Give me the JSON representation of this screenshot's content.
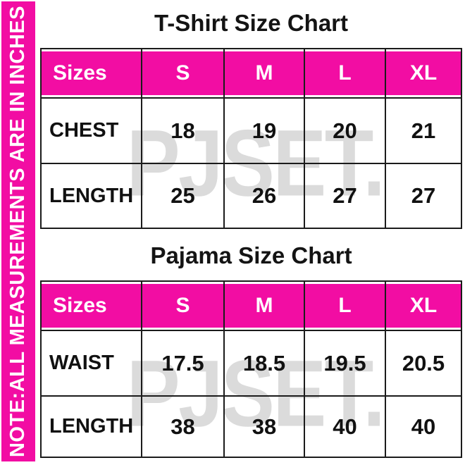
{
  "note_banner": {
    "text": "NOTE:ALL MEASUREMENTS ARE IN INCHES"
  },
  "watermark": {
    "text": "PJSET."
  },
  "colors": {
    "accent_pink": "#F20DA3",
    "watermark_gray": "#DBDBDB",
    "grid_line_black": "#1B1B1B",
    "text_black": "#111111",
    "text_white": "#FFFFFF"
  },
  "tshirt_chart": {
    "title": "T-Shirt Size Chart",
    "header": {
      "label": "Sizes",
      "sizes": [
        "S",
        "M",
        "L",
        "XL"
      ]
    },
    "rows": [
      {
        "label": "CHEST",
        "values": [
          "18",
          "19",
          "20",
          "21"
        ]
      },
      {
        "label": "LENGTH",
        "values": [
          "25",
          "26",
          "27",
          "27"
        ]
      }
    ]
  },
  "pajama_chart": {
    "title": "Pajama Size Chart",
    "header": {
      "label": "Sizes",
      "sizes": [
        "S",
        "M",
        "L",
        "XL"
      ]
    },
    "rows": [
      {
        "label": "WAIST",
        "values": [
          "17.5",
          "18.5",
          "19.5",
          "20.5"
        ]
      },
      {
        "label": "LENGTH",
        "values": [
          "38",
          "38",
          "40",
          "40"
        ]
      }
    ]
  }
}
